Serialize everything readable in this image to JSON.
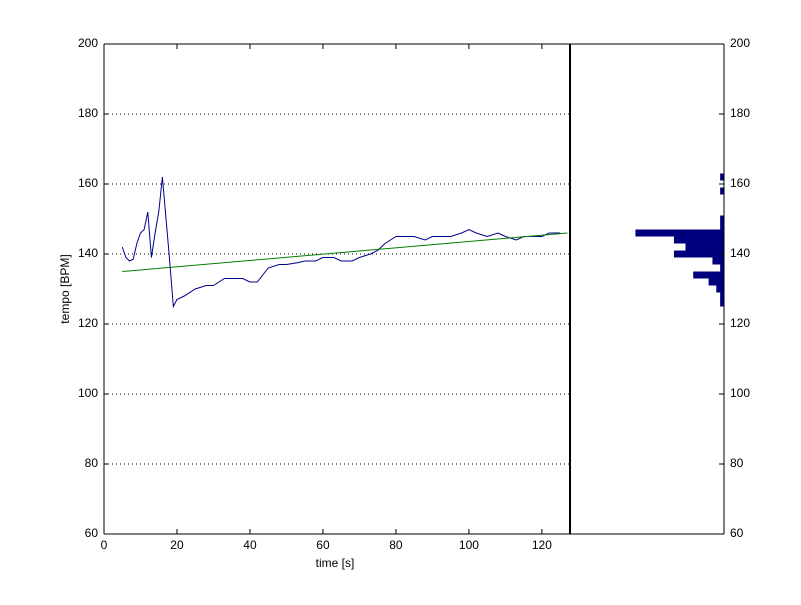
{
  "chart_data": [
    {
      "type": "line",
      "xlabel": "time [s]",
      "ylabel": "tempo [BPM]",
      "xlim": [
        0,
        127.7
      ],
      "xticks": [
        0,
        20,
        40,
        60,
        80,
        100,
        120
      ],
      "ylim": [
        60,
        200
      ],
      "yticks": [
        60,
        80,
        100,
        120,
        140,
        160,
        180,
        200
      ],
      "grid": "y-dotted",
      "series": [
        {
          "color": "#00008b",
          "x": [
            5,
            6,
            7,
            8,
            9,
            10,
            11,
            12,
            13,
            14,
            15,
            16,
            17,
            18,
            19,
            20,
            22,
            25,
            28,
            30,
            33,
            35,
            38,
            40,
            42,
            45,
            48,
            50,
            53,
            55,
            58,
            60,
            63,
            65,
            68,
            70,
            73,
            75,
            77,
            80,
            83,
            85,
            88,
            90,
            93,
            95,
            98,
            100,
            102,
            105,
            108,
            110,
            113,
            115,
            118,
            120,
            122,
            125
          ],
          "values": [
            142,
            139,
            138,
            138.5,
            143,
            146,
            147,
            152,
            139,
            146,
            152,
            162,
            150,
            138,
            125,
            127,
            128,
            130,
            131,
            131,
            133,
            133,
            133,
            132,
            132,
            136,
            137,
            137,
            137.5,
            138,
            138,
            139,
            139,
            138,
            138,
            139,
            140,
            141,
            143,
            145,
            145,
            145,
            144,
            145,
            145,
            145,
            146,
            147,
            146,
            145,
            146,
            145,
            144,
            145,
            145,
            145,
            146,
            146
          ]
        },
        {
          "color": "#007f00",
          "x": [
            5,
            127
          ],
          "values": [
            135,
            146
          ]
        }
      ]
    },
    {
      "type": "histogram",
      "orientation": "horizontal",
      "x_reversed": true,
      "color": "#00007f",
      "xlim": [
        0,
        40
      ],
      "ylim": [
        60,
        200
      ],
      "yticks": [
        60,
        80,
        100,
        120,
        140,
        160,
        180,
        200
      ],
      "bins": [
        125,
        127,
        129,
        131,
        133,
        135,
        137,
        139,
        141,
        143,
        145,
        147,
        149,
        151,
        153,
        155,
        157,
        159,
        161,
        163
      ],
      "values": [
        1,
        1,
        2,
        4,
        8,
        1,
        3,
        13,
        10,
        13,
        23,
        1,
        1,
        0,
        0,
        0,
        1,
        0,
        1
      ]
    }
  ]
}
